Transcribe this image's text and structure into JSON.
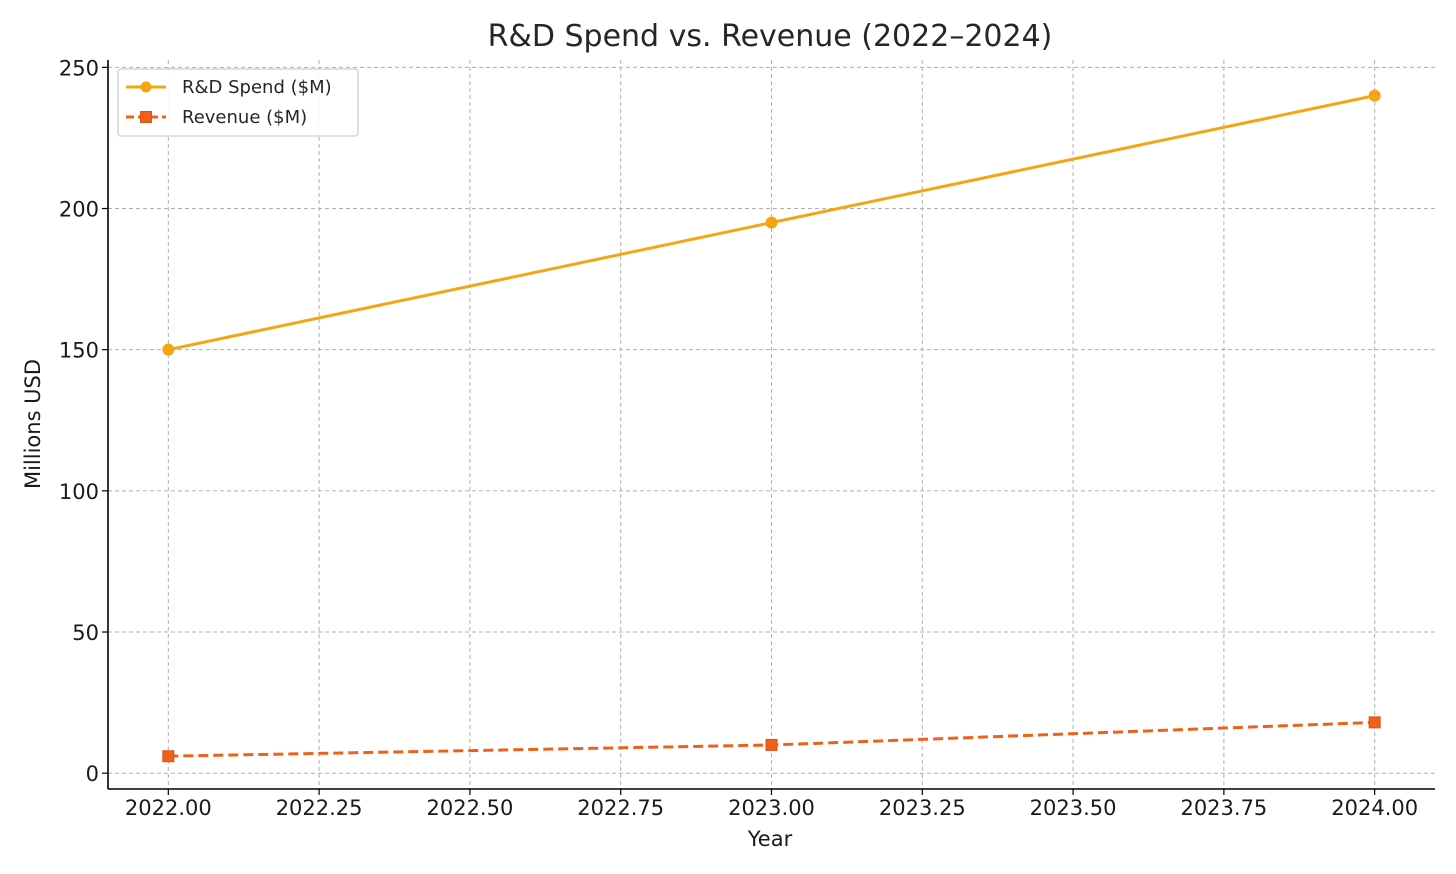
{
  "chart_data": {
    "type": "line",
    "title": "R&D Spend vs. Revenue (2022–2024)",
    "xlabel": "Year",
    "ylabel": "Millions USD",
    "x": [
      2022,
      2023,
      2024
    ],
    "xlim": [
      2021.9,
      2024.1
    ],
    "ylim": [
      -5.6,
      252.6
    ],
    "xticks": [
      2022.0,
      2022.25,
      2022.5,
      2022.75,
      2023.0,
      2023.25,
      2023.5,
      2023.75,
      2024.0
    ],
    "xtick_labels": [
      "2022.00",
      "2022.25",
      "2022.50",
      "2022.75",
      "2023.00",
      "2023.25",
      "2023.50",
      "2023.75",
      "2024.00"
    ],
    "yticks": [
      0,
      50,
      100,
      150,
      200,
      250
    ],
    "ytick_labels": [
      "0",
      "50",
      "100",
      "150",
      "200",
      "250"
    ],
    "grid": true,
    "legend_position": "top-left",
    "series": [
      {
        "name": "R&D Spend ($M)",
        "values": [
          150,
          195,
          240
        ],
        "color": "#f5a511",
        "marker": "circle",
        "linestyle": "solid"
      },
      {
        "name": "Revenue ($M)",
        "values": [
          6,
          10,
          18
        ],
        "color": "#ee6119",
        "marker": "square",
        "linestyle": "dashed"
      }
    ]
  }
}
